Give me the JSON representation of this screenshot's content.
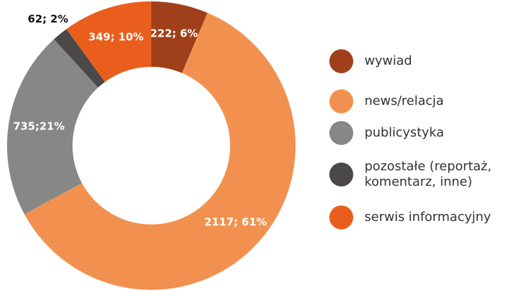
{
  "chart_data": {
    "type": "donut",
    "categories": [
      "wywiad",
      "news/relacja",
      "publicystyka",
      "pozostałe (reportaż, komentarz, inne)",
      "serwis informacyjny"
    ],
    "values": [
      222,
      2117,
      735,
      62,
      349
    ],
    "value_labels": [
      "222; 6%",
      "2117; 61%",
      "735;21%",
      "62; 2%",
      "349; 10%"
    ],
    "colors": [
      "#a0401a",
      "#f2914f",
      "#878787",
      "#4a4848",
      "#e95e1c"
    ],
    "legend": "right"
  }
}
